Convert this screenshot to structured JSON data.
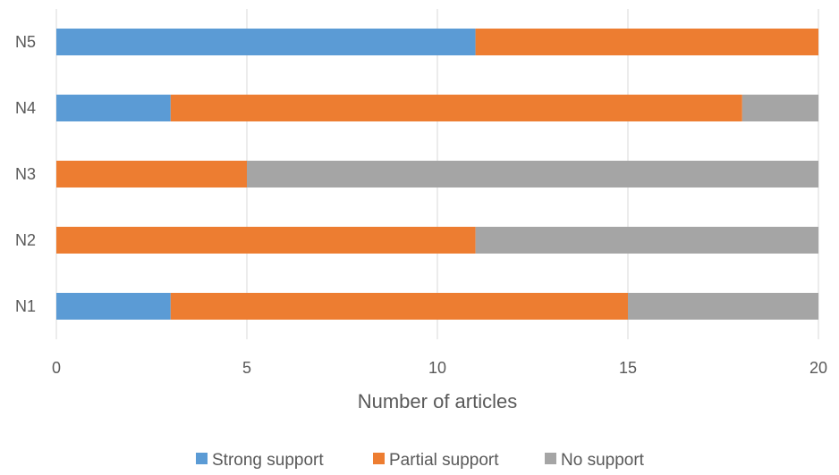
{
  "chart_data": {
    "type": "bar",
    "orientation": "horizontal",
    "stacked": true,
    "categories": [
      "N1",
      "N2",
      "N3",
      "N4",
      "N5"
    ],
    "series": [
      {
        "name": "Strong support",
        "color": "#5b9bd5",
        "values": [
          3,
          0,
          0,
          3,
          11
        ]
      },
      {
        "name": "Partial support",
        "color": "#ed7d31",
        "values": [
          12,
          11,
          5,
          15,
          9
        ]
      },
      {
        "name": "No support",
        "color": "#a5a5a5",
        "values": [
          5,
          9,
          15,
          2,
          0
        ]
      }
    ],
    "xlabel": "Number of articles",
    "ylabel": "",
    "xlim": [
      0,
      20
    ],
    "xticks": [
      "0",
      "5",
      "10",
      "15",
      "20"
    ],
    "grid": true,
    "legend_position": "bottom"
  }
}
